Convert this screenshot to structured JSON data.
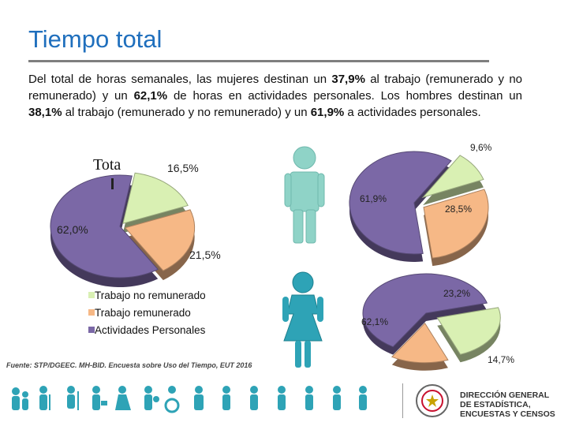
{
  "slide": {
    "title": "Tiempo total",
    "paragraph": {
      "p1": "Del total de horas semanales, las mujeres destinan un ",
      "v1": "37,9%",
      "p2": " al trabajo (remunerado y no remunerado) y un ",
      "v2": "62,1%",
      "p3": " de horas en actividades personales. Los hombres destinan un ",
      "v3": "38,1%",
      "p4": " al trabajo (remunerado y no remunerado) y un ",
      "v4": "61,9%",
      "p5": " a actividades personales."
    },
    "source": "Fuente: STP/DGEEC. MH-BID. Encuesta sobre Uso del Tiempo, EUT 2016",
    "org": {
      "line1": "DIRECCIÓN GENERAL",
      "line2": "DE ESTADÍSTICA,",
      "line3": "ENCUESTAS Y CENSOS"
    }
  },
  "chart_data": [
    {
      "type": "pie",
      "title": "Tota",
      "categories": [
        "Trabajo no remunerado",
        "Trabajo remunerado",
        "Actividades Personales"
      ],
      "values": [
        16.5,
        21.5,
        62.0
      ],
      "labels": [
        "16,5%",
        "21,5%",
        "62,0%"
      ],
      "colors": [
        "#d9f0b3",
        "#f6b886",
        "#7b68a6"
      ],
      "legend": "bottom-left"
    },
    {
      "type": "pie",
      "title": "",
      "categories": [
        "Trabajo no remunerado",
        "Trabajo remunerado",
        "Actividades Personales"
      ],
      "values": [
        9.6,
        28.5,
        61.9
      ],
      "labels": [
        "9,6%",
        "28,5%",
        "61,9%"
      ],
      "colors": [
        "#d9f0b3",
        "#f6b886",
        "#7b68a6"
      ]
    },
    {
      "type": "pie",
      "title": "",
      "categories": [
        "Trabajo no remunerado",
        "Trabajo remunerado",
        "Actividades Personales"
      ],
      "values": [
        23.2,
        14.7,
        62.1
      ],
      "labels": [
        "23,2%",
        "14,7%",
        "62,1%"
      ],
      "colors": [
        "#d9f0b3",
        "#f6b886",
        "#7b68a6"
      ]
    }
  ],
  "colors": {
    "title": "#1f6fbd",
    "rule": "#7f7f7f",
    "man_icon": "#8fd3c7",
    "woman_icon": "#2ea3b6"
  }
}
